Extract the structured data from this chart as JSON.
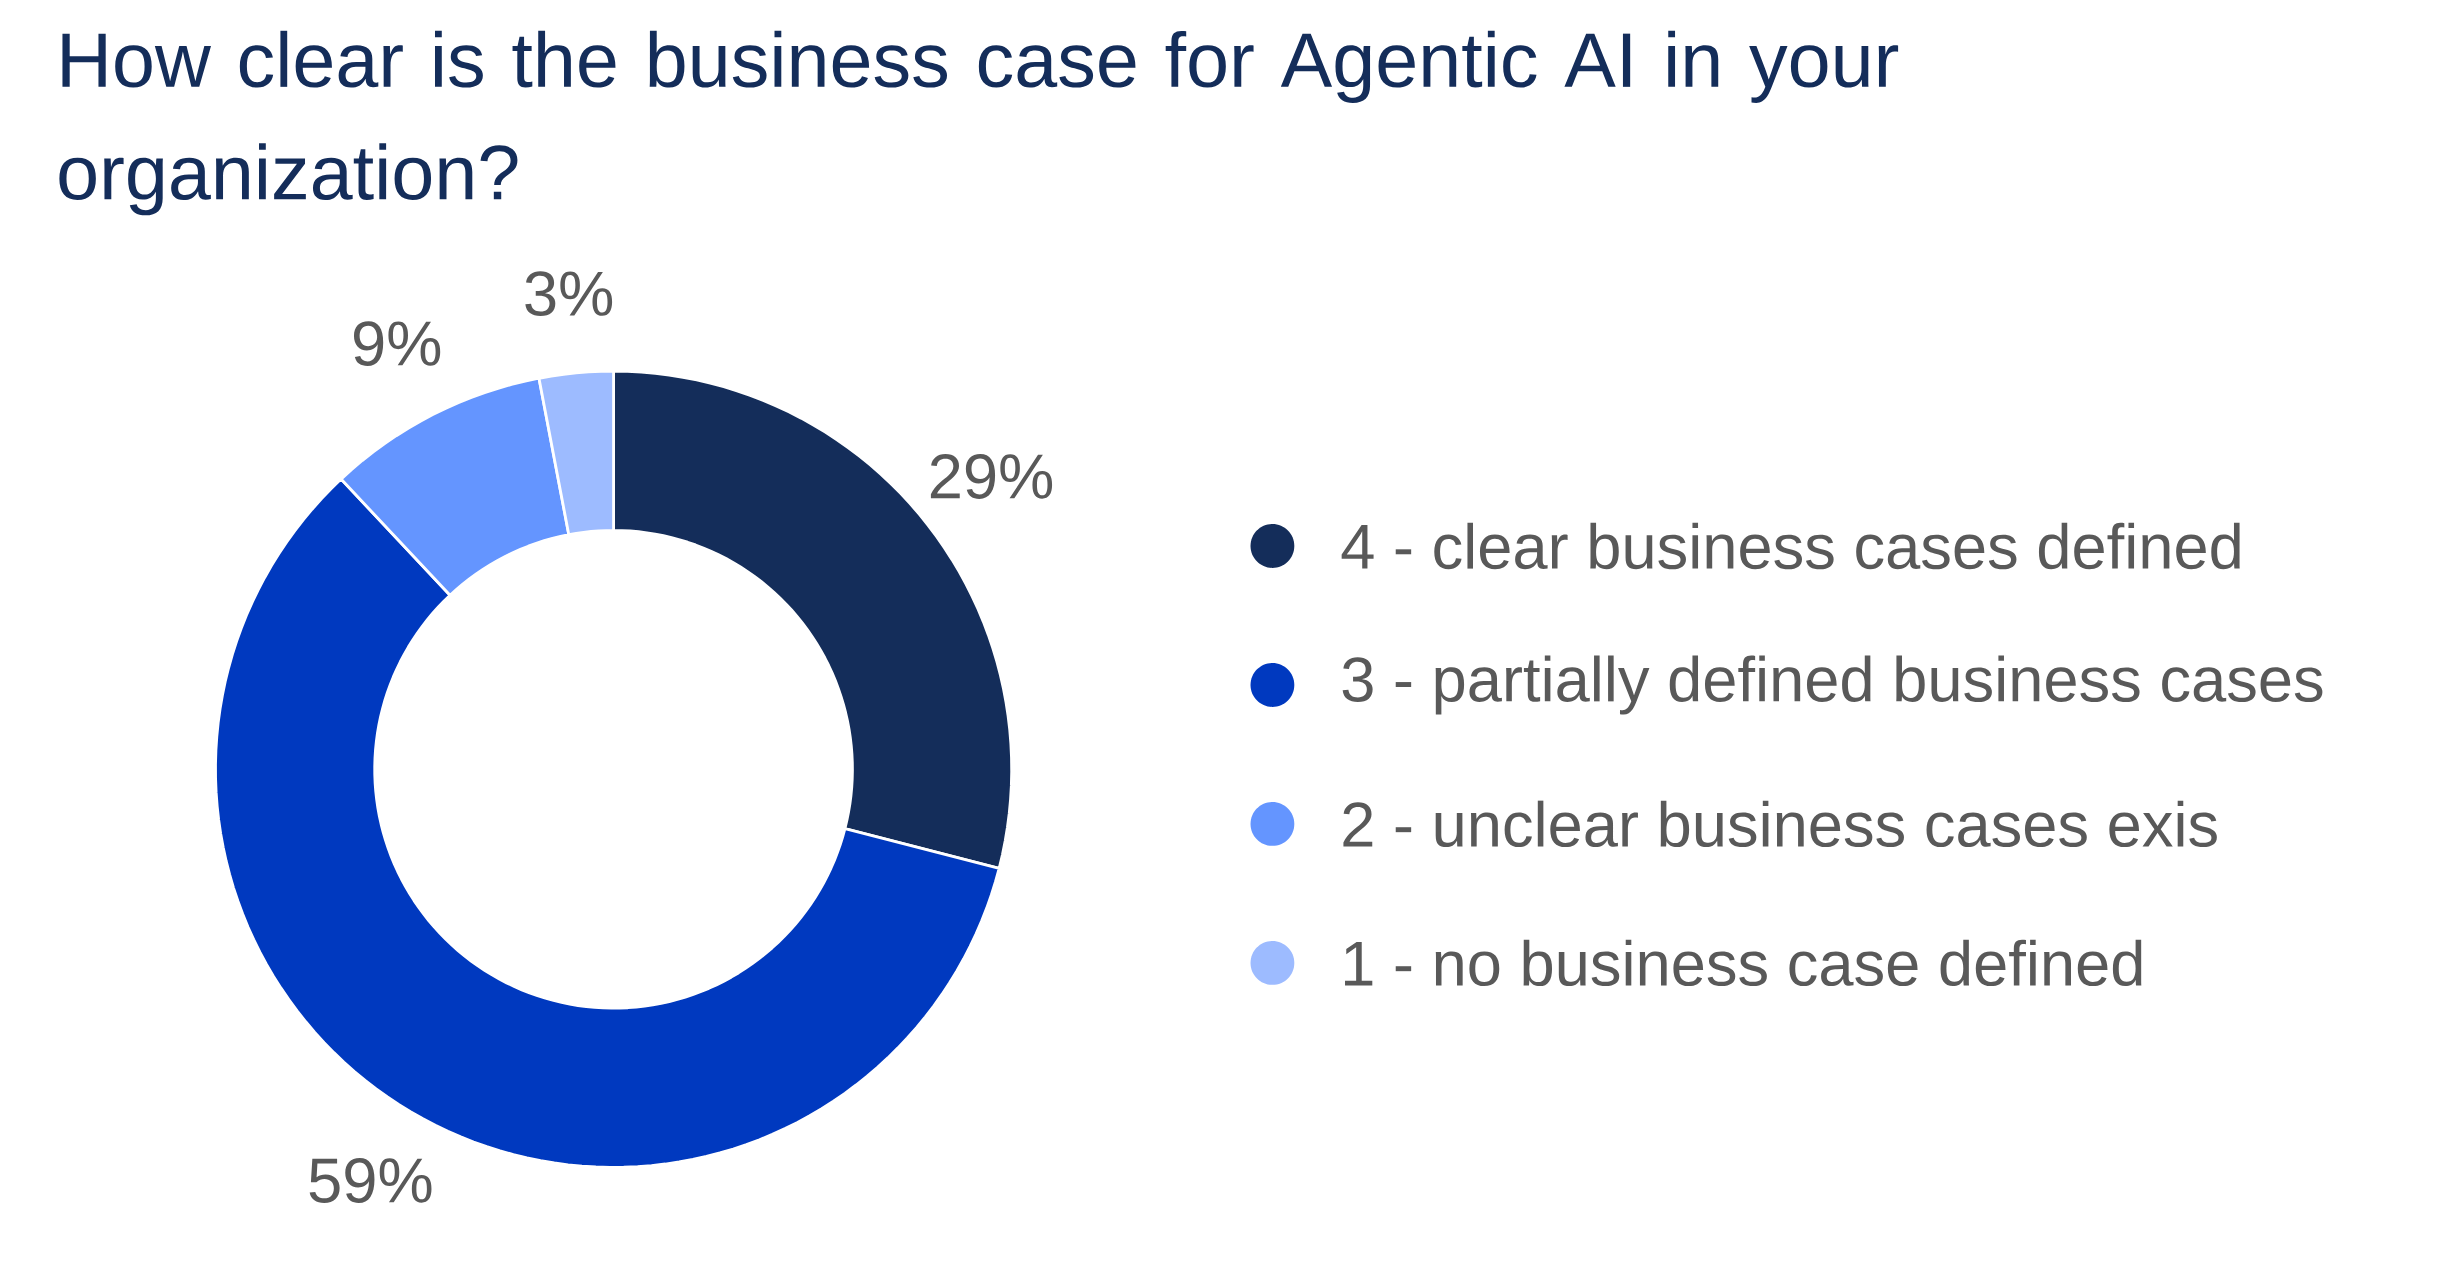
{
  "chart_data": {
    "type": "donut",
    "title": "How clear is the business case for Agentic AI in your organization?",
    "categories": [
      "4 - clear business cases defined",
      "3 - partially defined business cases",
      "2 - unclear business cases exis",
      "1 - no business case defined"
    ],
    "values": [
      29,
      59,
      9,
      3
    ],
    "colors": [
      "#142d5a",
      "#0039bf",
      "#6495ff",
      "#9dbbff"
    ],
    "value_labels": [
      "29%",
      "59%",
      "9%",
      "3%"
    ],
    "legend": "right"
  }
}
